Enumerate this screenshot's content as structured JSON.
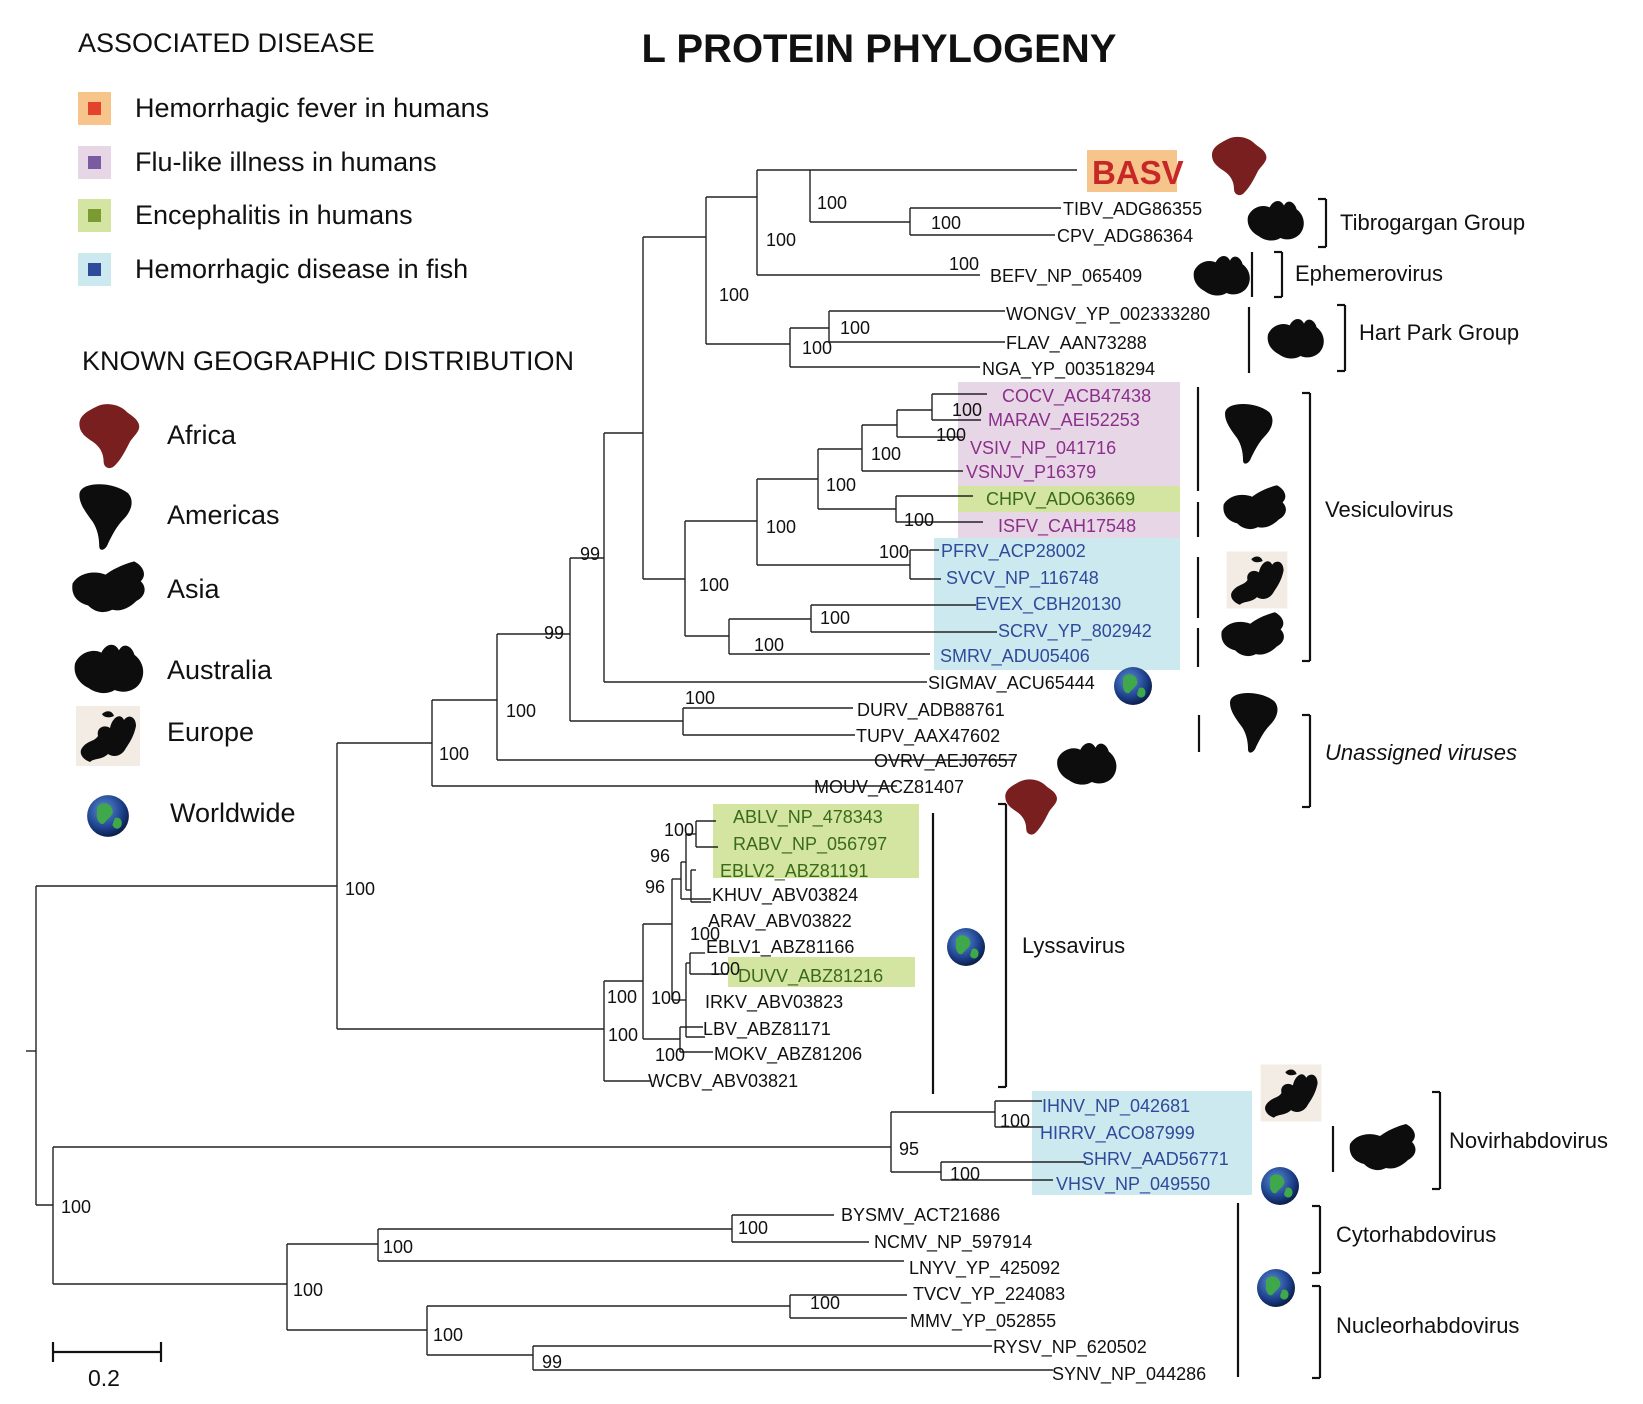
{
  "title": "L PROTEIN PHYLOGENY",
  "legend": {
    "disease_header": "ASSOCIATED DISEASE",
    "diseases": [
      {
        "label": "Hemorrhagic fever in humans",
        "swatch": "#f7c48c",
        "dot": "#e2432a"
      },
      {
        "label": "Flu-like illness in humans",
        "swatch": "#e7d7e6",
        "dot": "#7a5aa0"
      },
      {
        "label": "Encephalitis in humans",
        "swatch": "#d3e5a0",
        "dot": "#7a9a32"
      },
      {
        "label": "Hemorrhagic disease in fish",
        "swatch": "#cde9f0",
        "dot": "#2e4a9a"
      }
    ],
    "geo_header": "KNOWN GEOGRAPHIC DISTRIBUTION",
    "regions": [
      {
        "label": "Africa",
        "icon": "africa-silhouette-icon"
      },
      {
        "label": "Americas",
        "icon": "americas-silhouette-icon"
      },
      {
        "label": "Asia",
        "icon": "asia-silhouette-icon"
      },
      {
        "label": "Australia",
        "icon": "australia-silhouette-icon"
      },
      {
        "label": "Europe",
        "icon": "europe-silhouette-icon"
      },
      {
        "label": "Worldwide",
        "icon": "globe-icon"
      }
    ]
  },
  "colors": {
    "purple_text": "#8b2f8b",
    "blue_text": "#2e4a9a",
    "green_text": "#3a6b1a",
    "black_text": "#111111",
    "africa_fill": "#7a1f1f"
  },
  "basv_label": "BASV",
  "taxa": [
    {
      "id": "TIBV",
      "label": "TIBV_ADG86355"
    },
    {
      "id": "CPV",
      "label": "CPV_ADG86364"
    },
    {
      "id": "BEFV",
      "label": "BEFV_NP_065409"
    },
    {
      "id": "WONGV",
      "label": "WONGV_YP_002333280"
    },
    {
      "id": "FLAV",
      "label": "FLAV_AAN73288"
    },
    {
      "id": "NGA",
      "label": "NGA_YP_003518294"
    },
    {
      "id": "COCV",
      "label": "COCV_ACB47438"
    },
    {
      "id": "MARAV",
      "label": "MARAV_AEI52253"
    },
    {
      "id": "VSIV",
      "label": "VSIV_NP_041716"
    },
    {
      "id": "VSNJV",
      "label": "VSNJV_P16379"
    },
    {
      "id": "CHPV",
      "label": "CHPV_ADO63669"
    },
    {
      "id": "ISFV",
      "label": "ISFV_CAH17548"
    },
    {
      "id": "PFRV",
      "label": "PFRV_ACP28002"
    },
    {
      "id": "SVCV",
      "label": "SVCV_NP_116748"
    },
    {
      "id": "EVEX",
      "label": "EVEX_CBH20130"
    },
    {
      "id": "SCRV",
      "label": "SCRV_YP_802942"
    },
    {
      "id": "SMRV",
      "label": "SMRV_ADU05406"
    },
    {
      "id": "SIGMAV",
      "label": "SIGMAV_ACU65444"
    },
    {
      "id": "DURV",
      "label": "DURV_ADB88761"
    },
    {
      "id": "TUPV",
      "label": "TUPV_AAX47602"
    },
    {
      "id": "OVRV",
      "label": "OVRV_AEJ07657"
    },
    {
      "id": "MOUV",
      "label": "MOUV_ACZ81407"
    },
    {
      "id": "ABLV",
      "label": "ABLV_NP_478343"
    },
    {
      "id": "RABV",
      "label": "RABV_NP_056797"
    },
    {
      "id": "EBLV2",
      "label": "EBLV2_ABZ81191"
    },
    {
      "id": "KHUV",
      "label": "KHUV_ABV03824"
    },
    {
      "id": "ARAV",
      "label": "ARAV_ABV03822"
    },
    {
      "id": "EBLV1",
      "label": "EBLV1_ABZ81166"
    },
    {
      "id": "DUVV",
      "label": "DUVV_ABZ81216"
    },
    {
      "id": "IRKV",
      "label": "IRKV_ABV03823"
    },
    {
      "id": "LBV",
      "label": "LBV_ABZ81171"
    },
    {
      "id": "MOKV",
      "label": "MOKV_ABZ81206"
    },
    {
      "id": "WCBV",
      "label": "WCBV_ABV03821"
    },
    {
      "id": "IHNV",
      "label": "IHNV_NP_042681"
    },
    {
      "id": "HIRRV",
      "label": "HIRRV_ACO87999"
    },
    {
      "id": "SHRV",
      "label": "SHRV_AAD56771"
    },
    {
      "id": "VHSV",
      "label": "VHSV_NP_049550"
    },
    {
      "id": "BYSMV",
      "label": "BYSMV_ACT21686"
    },
    {
      "id": "NCMV",
      "label": "NCMV_NP_597914"
    },
    {
      "id": "LNYV",
      "label": "LNYV_YP_425092"
    },
    {
      "id": "TVCV",
      "label": "TVCV_YP_224083"
    },
    {
      "id": "MMV",
      "label": "MMV_YP_052855"
    },
    {
      "id": "RYSV",
      "label": "RYSV_NP_620502"
    },
    {
      "id": "SYNV",
      "label": "SYNV_NP_044286"
    }
  ],
  "bootstrap_values": [
    "100",
    "100",
    "100",
    "100",
    "100",
    "100",
    "100",
    "100",
    "100",
    "100",
    "100",
    "100",
    "100",
    "100",
    "100",
    "100",
    "100",
    "99",
    "99",
    "100",
    "100",
    "100",
    "100",
    "100",
    "96",
    "96",
    "100",
    "100",
    "100",
    "100",
    "100",
    "100",
    "100",
    "100",
    "95",
    "100",
    "100",
    "100",
    "100",
    "100",
    "100",
    "99"
  ],
  "groups": [
    {
      "label": "Tibrogargan Group",
      "italic": false
    },
    {
      "label": "Ephemerovirus",
      "italic": false
    },
    {
      "label": "Hart Park Group",
      "italic": false
    },
    {
      "label": "Vesiculovirus",
      "italic": false
    },
    {
      "label": "Unassigned viruses",
      "italic": true
    },
    {
      "label": "Lyssavirus",
      "italic": false
    },
    {
      "label": "Novirhabdovirus",
      "italic": false
    },
    {
      "label": "Cytorhabdovirus",
      "italic": false
    },
    {
      "label": "Nucleorhabdovirus",
      "italic": false
    }
  ],
  "scale_bar": {
    "label": "0.2"
  }
}
